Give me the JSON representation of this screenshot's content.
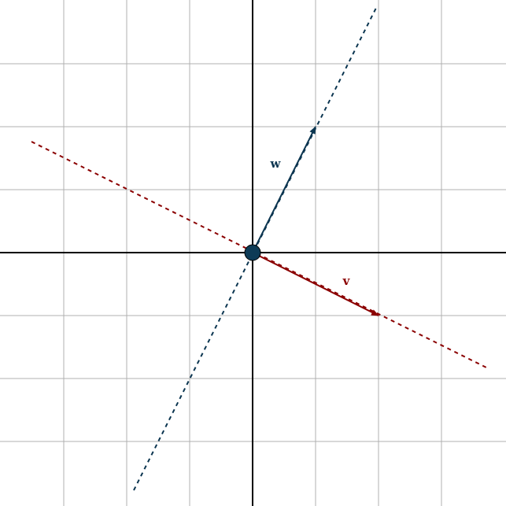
{
  "labels": {
    "w": "w",
    "v": "v"
  }
}
